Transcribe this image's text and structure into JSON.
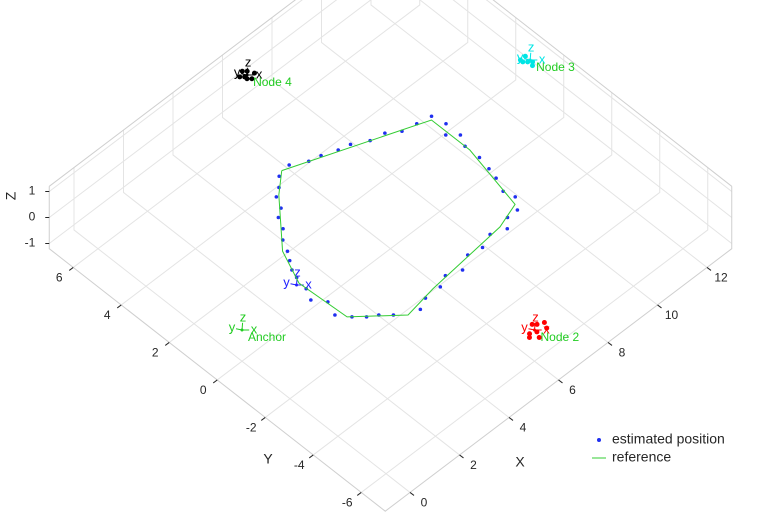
{
  "chart_data": {
    "type": "scatter3d",
    "x_label": "X",
    "y_label": "Y",
    "z_label": "Z",
    "xlim": [
      -1,
      13
    ],
    "ylim": [
      -7,
      7
    ],
    "zlim": [
      -1.2,
      1.2
    ],
    "xticks": [
      0,
      2,
      4,
      6,
      8,
      10,
      12
    ],
    "yticks": [
      -6,
      -4,
      -2,
      0,
      2,
      4,
      6
    ],
    "zticks": [
      -1,
      0,
      1
    ],
    "grid": true,
    "legend": "southeast",
    "series": [
      {
        "name": "estimated position",
        "color": "#1f2ff0",
        "marker": "dot",
        "x": [
          5.3,
          5.8,
          6.2,
          6.7,
          7.1,
          7.6,
          8.1,
          8.5,
          9.0,
          9.5,
          9.6,
          9.3,
          9.6,
          9.4,
          9.4,
          9.3,
          9.2,
          9.0,
          9.1,
          8.8,
          8.4,
          8.1,
          7.6,
          7.1,
          6.6,
          6.1,
          5.6,
          5.2,
          4.6,
          4.2,
          3.5,
          3.2,
          2.9,
          2.6,
          2.3,
          2.5,
          2.2,
          2.4,
          2.5,
          2.6,
          2.8,
          3.0,
          3.2,
          3.5,
          3.7,
          4.0,
          4.2,
          4.5,
          4.8
        ],
        "y": [
          3.5,
          3.2,
          3.1,
          2.9,
          2.8,
          2.5,
          2.4,
          2.1,
          2.0,
          1.9,
          1.4,
          1.1,
          0.8,
          0.4,
          -0.2,
          -0.7,
          -1.1,
          -1.6,
          -2.0,
          -2.4,
          -2.4,
          -2.7,
          -2.5,
          -2.7,
          -2.6,
          -2.9,
          -2.7,
          -2.9,
          -2.9,
          -3.1,
          -2.7,
          -2.4,
          -2.2,
          -1.9,
          -1.5,
          -1.0,
          -0.6,
          -0.2,
          0.3,
          0.6,
          0.9,
          1.2,
          1.6,
          1.9,
          2.3,
          2.5,
          2.9,
          3.1,
          3.4
        ]
      },
      {
        "name": "reference",
        "color": "#33cc33",
        "marker": "line",
        "x": [
          5.0,
          9.4,
          9.4,
          8.9,
          8.0,
          5.0,
          3.8,
          2.5,
          2.4,
          2.9,
          4.3,
          5.0
        ],
        "y": [
          3.5,
          1.8,
          0.2,
          -2.2,
          -2.5,
          -2.8,
          -3.0,
          -1.8,
          0.1,
          1.3,
          2.9,
          3.5
        ]
      }
    ],
    "frame_labels": [
      "x",
      "y",
      "z"
    ],
    "nodes": [
      {
        "label": "Anchor",
        "x": 0,
        "y": 0,
        "color": "#22cc22",
        "label_color": "#22cc22",
        "cluster_x": [],
        "cluster_y": []
      },
      {
        "label": "Node 2",
        "x": 6,
        "y": -6,
        "color": "#ff0000",
        "label_color": "#22cc22",
        "cluster_x": [
          5.8,
          6.1,
          6.3,
          5.9,
          6.2,
          6.0,
          6.4,
          5.7
        ],
        "cluster_y": [
          -6.0,
          -5.8,
          -6.2,
          -6.3,
          -5.9,
          -6.1,
          -6.0,
          -6.1
        ]
      },
      {
        "label": "Node 3",
        "x": 13,
        "y": 1.4,
        "color": "#00e5e5",
        "label_color": "#22cc22",
        "cluster_x": [
          12.9,
          13.0,
          12.8,
          13.0,
          12.9,
          12.8
        ],
        "cluster_y": [
          1.4,
          1.6,
          1.5,
          1.3,
          1.2,
          1.6
        ]
      },
      {
        "label": "Node 4",
        "x": 6.8,
        "y": 6.8,
        "color": "#000000",
        "label_color": "#22cc22",
        "cluster_x": [
          6.7,
          6.9,
          6.8,
          6.6,
          7.0,
          6.8,
          6.7
        ],
        "cluster_y": [
          6.8,
          6.9,
          6.6,
          6.9,
          6.7,
          7.0,
          6.7
        ]
      },
      {
        "x": 2.3,
        "y": 0.1,
        "color": "#2020ff",
        "cluster_x": [],
        "cluster_y": []
      }
    ]
  }
}
